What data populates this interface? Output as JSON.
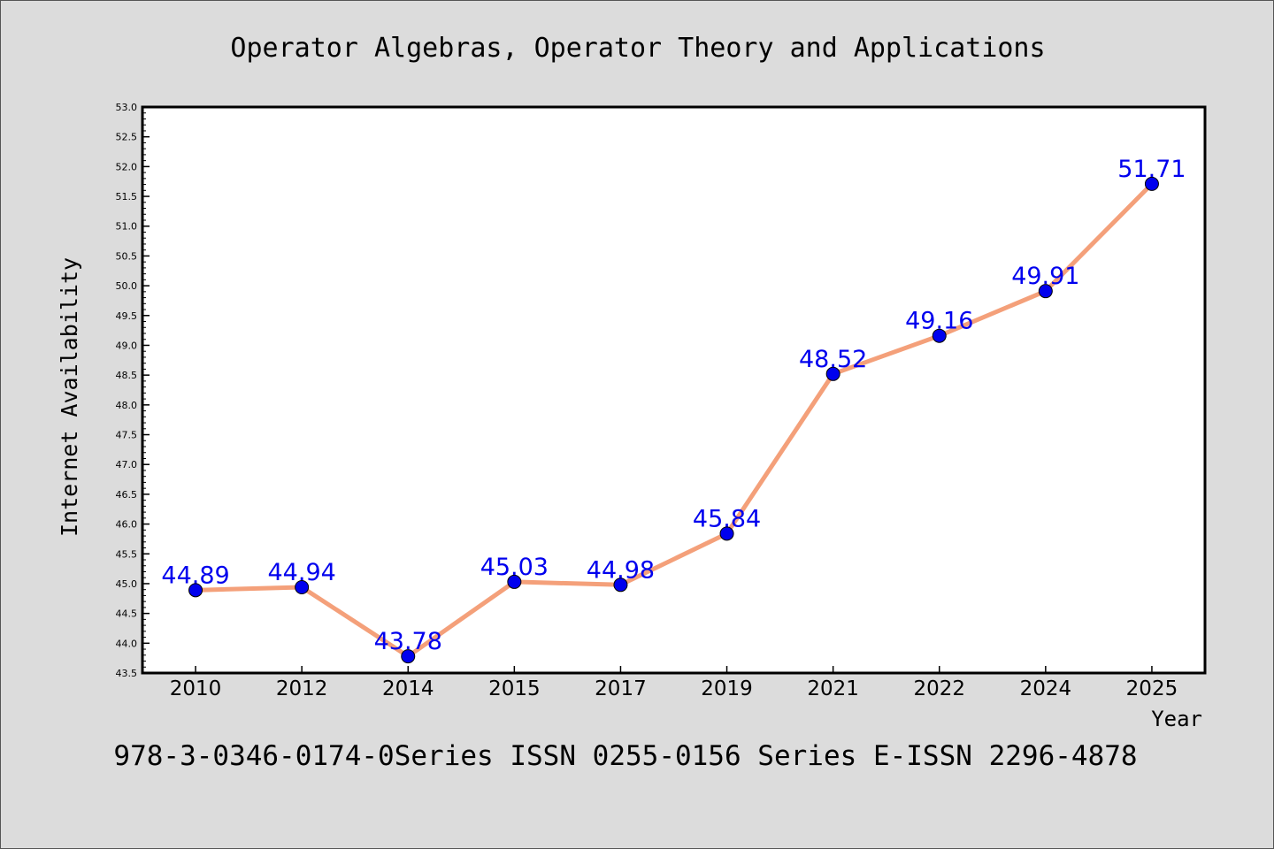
{
  "chart_data": {
    "type": "line",
    "title": "Operator Algebras, Operator Theory and Applications",
    "subtitle": "978-3-0346-0174-0Series ISSN 0255-0156 Series E-ISSN 2296-4878",
    "xlabel": "Year",
    "ylabel": "Internet Availability",
    "categories": [
      "2010",
      "2012",
      "2014",
      "2015",
      "2017",
      "2019",
      "2021",
      "2022",
      "2024",
      "2025"
    ],
    "values": [
      44.89,
      44.94,
      43.78,
      45.03,
      44.98,
      45.84,
      48.52,
      49.16,
      49.91,
      51.71
    ],
    "data_labels": [
      "44.89",
      "44.94",
      "43.78",
      "45.03",
      "44.98",
      "45.84",
      "48.52",
      "49.16",
      "49.91",
      "51.71"
    ],
    "ylim": [
      43.5,
      53.0
    ],
    "yticks": [
      "43.5",
      "44.0",
      "44.5",
      "45.0",
      "45.5",
      "46.0",
      "46.5",
      "47.0",
      "47.5",
      "48.0",
      "48.5",
      "49.0",
      "49.5",
      "50.0",
      "50.5",
      "51.0",
      "51.5",
      "52.0",
      "52.5",
      "53.0"
    ],
    "grid": false,
    "legend": "none",
    "colors": {
      "line": "#f4a07a",
      "marker": "#0000ee",
      "label": "#0000ee",
      "background": "#dcdcdc",
      "plot_background": "#ffffff"
    }
  }
}
